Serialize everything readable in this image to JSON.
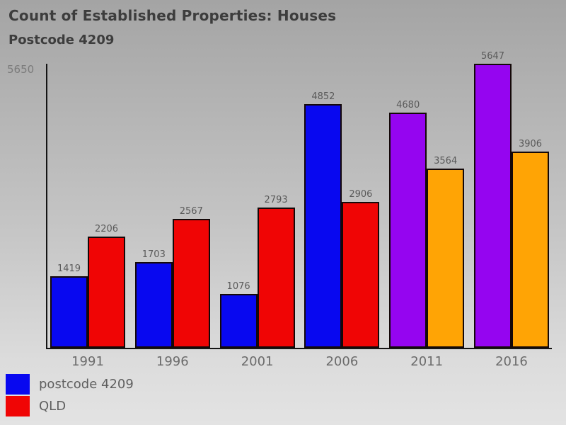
{
  "header": {
    "title": "Count of Established Properties: Houses",
    "subtitle": "Postcode 4209"
  },
  "y_axis": {
    "top_tick_label": "5650"
  },
  "chart_data": {
    "type": "bar",
    "title": "Count of Established Properties: Houses",
    "subtitle": "Postcode 4209",
    "categories": [
      "1991",
      "1996",
      "2001",
      "2006",
      "2011",
      "2016"
    ],
    "series": [
      {
        "name": "postcode 4209",
        "values": [
          1419,
          1703,
          1076,
          4852,
          4680,
          5647
        ],
        "bar_colors": [
          "#0808f0",
          "#0808f0",
          "#0808f0",
          "#0808f0",
          "#9505f0",
          "#9505f0"
        ]
      },
      {
        "name": "QLD",
        "values": [
          2206,
          2567,
          2793,
          2906,
          3564,
          3906
        ],
        "bar_colors": [
          "#f00505",
          "#f00505",
          "#f00505",
          "#f00505",
          "#ffa405",
          "#ffa405"
        ]
      }
    ],
    "ylim": [
      0,
      5650
    ],
    "xlabel": "",
    "ylabel": "",
    "grid": false,
    "value_labels": true,
    "legend_position": "bottom-left"
  },
  "legend": {
    "items": [
      {
        "label": "postcode 4209",
        "color": "#0808f0"
      },
      {
        "label": "QLD",
        "color": "#f00505"
      }
    ]
  },
  "colors": {
    "background_top": "#a4a4a4",
    "background_bottom": "#e3e3e3",
    "axis": "#141414",
    "title_text": "#3d3d3d",
    "tick_text": "#6b6b6b",
    "value_label_text": "#5a5a5a",
    "bar_blue": "#0808f0",
    "bar_red": "#f00505",
    "bar_purple": "#9505f0",
    "bar_orange": "#ffa405"
  }
}
